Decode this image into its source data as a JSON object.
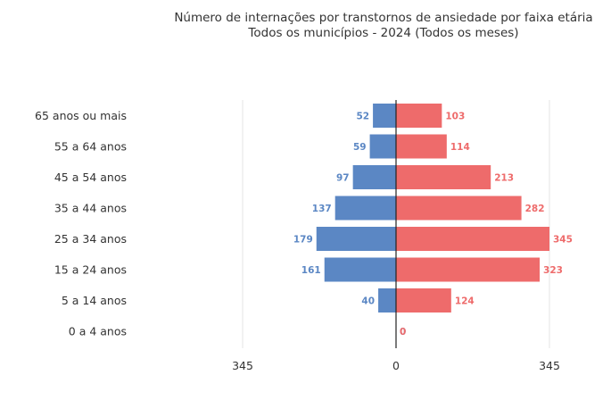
{
  "chart_data": {
    "type": "bar",
    "orientation": "horizontal",
    "layout": "population-pyramid",
    "title": "Número de internações por transtornos de ansiedade por faixa etária",
    "subtitle": "Todos os municípios - 2024 (Todos os meses)",
    "categories": [
      "65 anos ou mais",
      "55 a 64 anos",
      "45 a 54 anos",
      "35 a 44 anos",
      "25 a 34 anos",
      "15 a 24 anos",
      "5 a 14 anos",
      "0 a 4 anos"
    ],
    "series": [
      {
        "color": "#5b87c4",
        "side": "left",
        "values": [
          52,
          59,
          97,
          137,
          179,
          161,
          40,
          0
        ]
      },
      {
        "color": "#ee6b6b",
        "side": "right",
        "values": [
          103,
          114,
          213,
          282,
          345,
          323,
          124,
          0
        ]
      }
    ],
    "xlim": [
      -345,
      345
    ],
    "x_ticks": [
      {
        "value": -345,
        "label": "345"
      },
      {
        "value": 0,
        "label": "0"
      },
      {
        "value": 345,
        "label": "345"
      }
    ],
    "grid": true,
    "legend": "none"
  }
}
